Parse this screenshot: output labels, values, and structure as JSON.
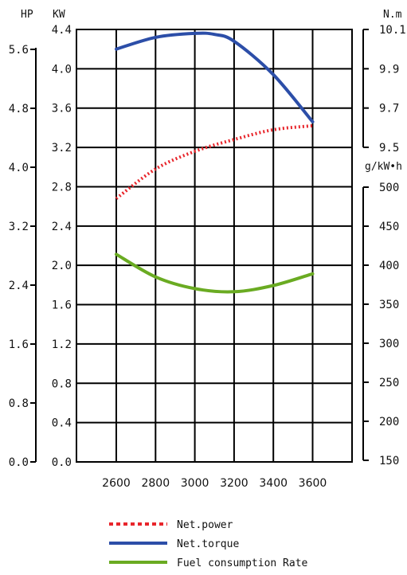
{
  "chart_data": {
    "type": "line",
    "x": [
      2600,
      2800,
      3000,
      3200,
      3400,
      3600
    ],
    "axes": {
      "hp": {
        "label": "HP",
        "ticks": [
          "5.6",
          "4.8",
          "4.0",
          "3.2",
          "2.4",
          "1.6",
          "0.8",
          "0.0"
        ],
        "range": [
          0.0,
          5.9
        ]
      },
      "kw": {
        "label": "KW",
        "ticks": [
          "4.4",
          "4.0",
          "3.6",
          "3.2",
          "2.8",
          "2.4",
          "2.0",
          "1.6",
          "1.2",
          "0.8",
          "0.4",
          "0.0"
        ],
        "range": [
          0.0,
          4.4
        ]
      },
      "torque": {
        "label": "N.m",
        "ticks": [
          "10.1",
          "9.9",
          "9.7",
          "9.5"
        ],
        "values": [
          10.1,
          9.9,
          9.7,
          9.5
        ],
        "range": [
          9.5,
          10.1
        ]
      },
      "fuel": {
        "label": "g/kW•h",
        "ticks": [
          "500",
          "450",
          "400",
          "350",
          "300",
          "250",
          "200",
          "150"
        ],
        "values": [
          500,
          450,
          400,
          350,
          300,
          250,
          200,
          150
        ],
        "range": [
          150,
          500
        ]
      },
      "x": {
        "ticks": [
          "2600",
          "2800",
          "3000",
          "3200",
          "3400",
          "3600"
        ],
        "values": [
          2600,
          2800,
          3000,
          3200,
          3400,
          3600
        ]
      }
    },
    "series": [
      {
        "name": "Net.power",
        "axis": "kw",
        "color": "#e8252b",
        "dashed": true,
        "x": [
          2600,
          2800,
          3000,
          3200,
          3400,
          3600
        ],
        "values": [
          2.68,
          2.98,
          3.16,
          3.28,
          3.38,
          3.42
        ]
      },
      {
        "name": "Net.torque",
        "axis": "torque",
        "color": "#2c4ea8",
        "dashed": false,
        "x": [
          2600,
          2800,
          3000,
          3100,
          3200,
          3400,
          3600
        ],
        "values": [
          10.0,
          10.06,
          10.08,
          10.075,
          10.04,
          9.87,
          9.63
        ]
      },
      {
        "name": "Fuel consumption Rate",
        "axis": "fuel",
        "color": "#6aab22",
        "dashed": false,
        "x": [
          2600,
          2800,
          3000,
          3200,
          3400,
          3600
        ],
        "values": [
          414,
          385,
          370,
          366,
          374,
          389
        ]
      }
    ],
    "grid": true,
    "legend_position": "bottom"
  }
}
